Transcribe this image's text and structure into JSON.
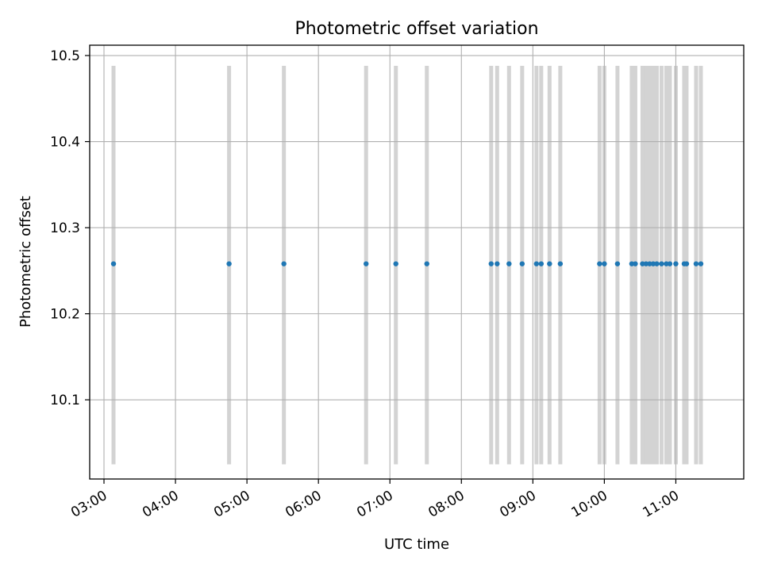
{
  "chart_data": {
    "type": "scatter",
    "title": "Photometric offset variation",
    "xlabel": "UTC time",
    "ylabel": "Photometric offset",
    "x_ticks": [
      "03:00",
      "04:00",
      "05:00",
      "06:00",
      "07:00",
      "08:00",
      "09:00",
      "10:00",
      "11:00"
    ],
    "y_ticks": [
      "10.1",
      "10.2",
      "10.3",
      "10.4",
      "10.5"
    ],
    "xlim": [
      "02:48",
      "11:57"
    ],
    "ylim": [
      10.008,
      10.512
    ],
    "grid": true,
    "span": {
      "y_low": 10.025,
      "y_high": 10.488,
      "color": "#d3d3d3"
    },
    "marker_color": "#1f77b4",
    "x": [
      "03:08",
      "04:45",
      "05:31",
      "06:40",
      "07:05",
      "07:31",
      "08:25",
      "08:30",
      "08:40",
      "08:51",
      "09:03",
      "09:07",
      "09:14",
      "09:23",
      "09:56",
      "10:00",
      "10:11",
      "10:23",
      "10:26",
      "10:32",
      "10:35",
      "10:38",
      "10:41",
      "10:44",
      "10:48",
      "10:52",
      "10:55",
      "11:00",
      "11:07",
      "11:09",
      "11:17",
      "11:21"
    ],
    "y": [
      10.258,
      10.258,
      10.258,
      10.258,
      10.258,
      10.258,
      10.258,
      10.258,
      10.258,
      10.258,
      10.258,
      10.258,
      10.258,
      10.258,
      10.258,
      10.258,
      10.258,
      10.258,
      10.258,
      10.258,
      10.258,
      10.258,
      10.258,
      10.258,
      10.258,
      10.258,
      10.258,
      10.258,
      10.258,
      10.258,
      10.258,
      10.258
    ]
  }
}
